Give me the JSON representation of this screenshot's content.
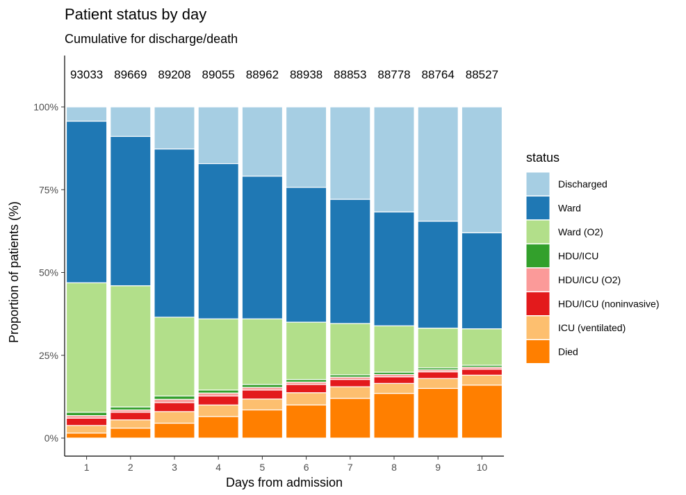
{
  "chart_data": {
    "type": "bar",
    "stacked": true,
    "title": "Patient status by day",
    "subtitle": "Cumulative for discharge/death",
    "xlabel": "Days from admission",
    "ylabel": "Proportion of patients (%)",
    "ylim": [
      0,
      100
    ],
    "yticks": [
      "0%",
      "25%",
      "50%",
      "75%",
      "100%"
    ],
    "ytick_values": [
      0,
      25,
      50,
      75,
      100
    ],
    "categories": [
      "1",
      "2",
      "3",
      "4",
      "5",
      "6",
      "7",
      "8",
      "9",
      "10"
    ],
    "counts": [
      "93033",
      "89669",
      "89208",
      "89055",
      "88962",
      "88938",
      "88853",
      "88778",
      "88764",
      "88527"
    ],
    "grid": false,
    "legend_position": "right",
    "legend_title": "status",
    "series": [
      {
        "name": "Died",
        "color": "#ff7f00",
        "values": [
          1.5,
          3.0,
          4.5,
          6.5,
          8.5,
          10.0,
          12.0,
          13.5,
          15.0,
          16.0
        ]
      },
      {
        "name": "ICU (ventilated)",
        "color": "#fdbf6f",
        "values": [
          2.3,
          2.5,
          3.5,
          3.5,
          3.3,
          3.7,
          3.5,
          3.0,
          3.0,
          3.0
        ]
      },
      {
        "name": "HDU/ICU (noninvasive)",
        "color": "#e31a1c",
        "values": [
          2.2,
          2.3,
          2.7,
          2.7,
          2.7,
          2.5,
          2.2,
          2.0,
          2.0,
          1.8
        ]
      },
      {
        "name": "HDU/ICU (O2)",
        "color": "#fb9a99",
        "values": [
          0.8,
          0.7,
          1.0,
          0.9,
          0.8,
          0.7,
          0.7,
          0.7,
          0.6,
          0.6
        ]
      },
      {
        "name": "HDU/ICU",
        "color": "#33a02c",
        "values": [
          1.0,
          0.9,
          1.0,
          0.9,
          0.9,
          0.8,
          0.7,
          0.7,
          0.6,
          0.6
        ]
      },
      {
        "name": "Ward (O2)",
        "color": "#b2df8a",
        "values": [
          39.1,
          36.6,
          23.8,
          21.5,
          19.8,
          17.3,
          15.5,
          14.0,
          12.0,
          11.0
        ]
      },
      {
        "name": "Ward",
        "color": "#1f78b4",
        "values": [
          48.8,
          45.1,
          50.8,
          46.9,
          43.1,
          40.7,
          37.5,
          34.4,
          32.3,
          29.0
        ]
      },
      {
        "name": "Discharged",
        "color": "#a6cee3",
        "values": [
          4.3,
          8.9,
          12.7,
          17.1,
          20.9,
          24.3,
          27.9,
          31.7,
          34.5,
          38.0
        ]
      }
    ],
    "legend_order": [
      "Discharged",
      "Ward",
      "Ward (O2)",
      "HDU/ICU",
      "HDU/ICU (O2)",
      "HDU/ICU (noninvasive)",
      "ICU (ventilated)",
      "Died"
    ]
  }
}
